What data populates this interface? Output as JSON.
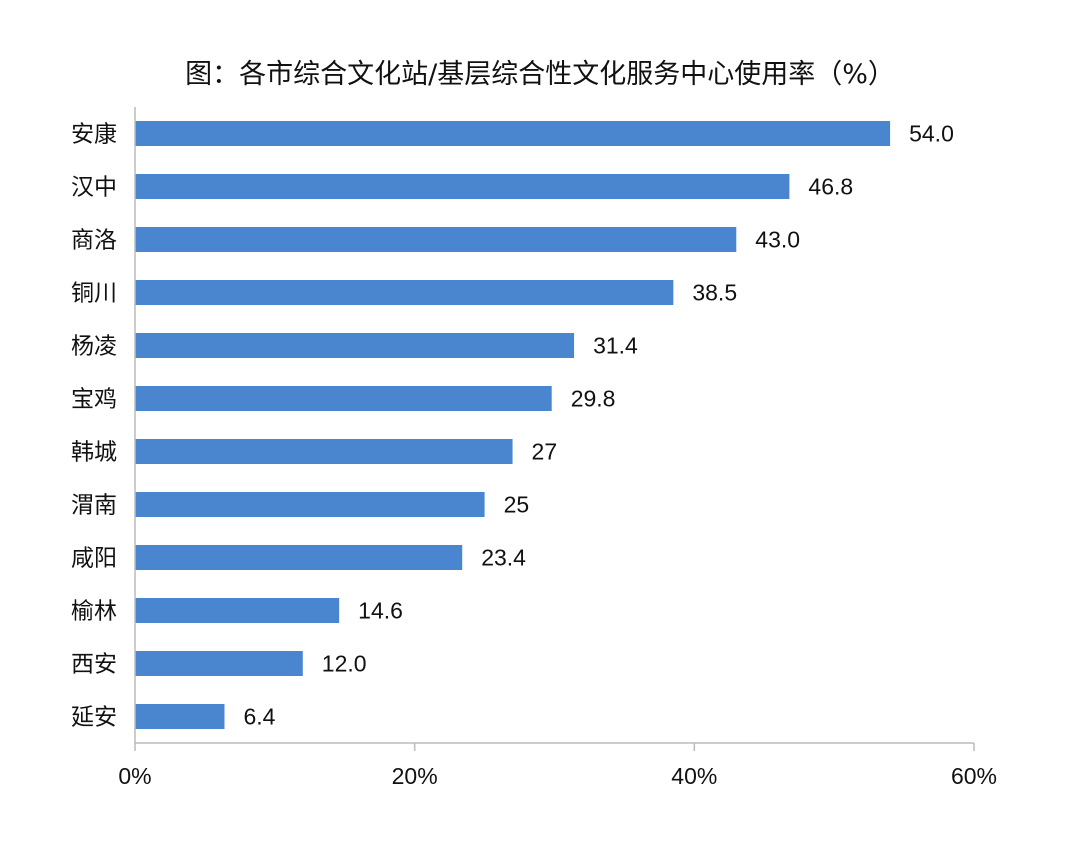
{
  "chart_data": {
    "type": "bar",
    "orientation": "horizontal",
    "title": "图：各市综合文化站/基层综合性文化服务中心使用率（%）",
    "categories": [
      "安康",
      "汉中",
      "商洛",
      "铜川",
      "杨凌",
      "宝鸡",
      "韩城",
      "渭南",
      "咸阳",
      "榆林",
      "西安",
      "延安"
    ],
    "values": [
      54.0,
      46.8,
      43.0,
      38.5,
      31.4,
      29.8,
      27,
      25,
      23.4,
      14.6,
      12.0,
      6.4
    ],
    "value_labels": [
      "54.0",
      "46.8",
      "43.0",
      "38.5",
      "31.4",
      "29.8",
      "27",
      "25",
      "23.4",
      "14.6",
      "12.0",
      "6.4"
    ],
    "xlim": [
      0,
      60
    ],
    "xticks": [
      0,
      20,
      40,
      60
    ],
    "xtick_labels": [
      "0%",
      "20%",
      "40%",
      "60%"
    ],
    "xlabel": "",
    "ylabel": "",
    "grid": false,
    "legend": "none",
    "bar_color": "#4a86cf"
  }
}
